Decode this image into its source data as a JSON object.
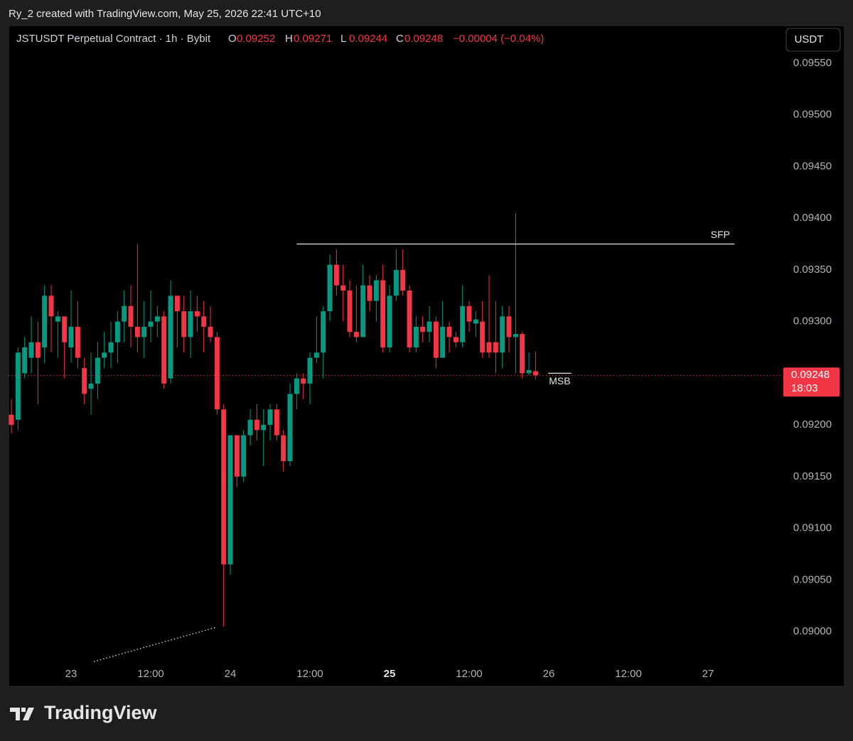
{
  "header": {
    "attribution": "Ry_2 created with TradingView.com, May 25, 2026 22:41 UTC+10"
  },
  "chart_data": {
    "type": "candlestick",
    "title": "JSTUSDT Perpetual Contract · 1h · Bybit",
    "ohlc_labels": [
      "O",
      "H",
      "L",
      "C"
    ],
    "change": "−0.00004 (−0.04%)",
    "currency": "USDT",
    "up_color": "#089981",
    "down_color": "#f23645",
    "x": [
      -9,
      -8,
      -7,
      -6,
      -5,
      -4,
      -3,
      -2,
      -1,
      0,
      1,
      2,
      3,
      4,
      5,
      6,
      7,
      8,
      9,
      10,
      11,
      12,
      13,
      14,
      15,
      16,
      17,
      18,
      19,
      20,
      21,
      22,
      23,
      24,
      25,
      26,
      27,
      28,
      29,
      30,
      31,
      32,
      33,
      34,
      35,
      36,
      37,
      38,
      39,
      40,
      41,
      42,
      43,
      44,
      45,
      46,
      47,
      48,
      49,
      50,
      51,
      52,
      53,
      54,
      55,
      56,
      57,
      58,
      59,
      60,
      61,
      62,
      63,
      64,
      65,
      66,
      67,
      68,
      69,
      70
    ],
    "open": [
      0.0921,
      0.09205,
      0.0925,
      0.09265,
      0.0928,
      0.09275,
      0.09325,
      0.093,
      0.09305,
      0.09275,
      0.09295,
      0.09255,
      0.09235,
      0.0924,
      0.09265,
      0.0927,
      0.0928,
      0.093,
      0.09315,
      0.09295,
      0.09285,
      0.09295,
      0.093,
      0.09305,
      0.09245,
      0.09325,
      0.0931,
      0.09285,
      0.0931,
      0.09305,
      0.09295,
      0.09285,
      0.09215,
      0.09065,
      0.0919,
      0.0915,
      0.0919,
      0.09205,
      0.09195,
      0.092,
      0.09215,
      0.0919,
      0.09165,
      0.0923,
      0.09245,
      0.0924,
      0.09265,
      0.0927,
      0.0931,
      0.09355,
      0.09335,
      0.0933,
      0.0929,
      0.09285,
      0.09335,
      0.0932,
      0.0934,
      0.09275,
      0.09325,
      0.0935,
      0.0933,
      0.09275,
      0.09295,
      0.0929,
      0.093,
      0.09265,
      0.09295,
      0.09285,
      0.0928,
      0.09315,
      0.09298,
      0.093,
      0.0928,
      0.0928,
      0.0927,
      0.09305,
      0.09285,
      0.09288,
      0.0925,
      0.09252
    ],
    "high": [
      0.09225,
      0.09275,
      0.09285,
      0.09305,
      0.093,
      0.09335,
      0.09335,
      0.0931,
      0.09305,
      0.0933,
      0.0932,
      0.09265,
      0.0927,
      0.0928,
      0.0929,
      0.093,
      0.0931,
      0.0933,
      0.09335,
      0.09375,
      0.0932,
      0.0933,
      0.09315,
      0.0931,
      0.0934,
      0.09325,
      0.09325,
      0.0933,
      0.09325,
      0.0932,
      0.09315,
      0.0929,
      0.0922,
      0.0919,
      0.0919,
      0.09195,
      0.09215,
      0.0922,
      0.09215,
      0.0922,
      0.0922,
      0.09195,
      0.0924,
      0.0925,
      0.0925,
      0.0927,
      0.09305,
      0.09315,
      0.09365,
      0.0937,
      0.09355,
      0.0934,
      0.09335,
      0.09355,
      0.09345,
      0.09345,
      0.09355,
      0.09335,
      0.0937,
      0.0937,
      0.09335,
      0.09305,
      0.09305,
      0.09315,
      0.09305,
      0.0932,
      0.093,
      0.0929,
      0.09335,
      0.0932,
      0.0931,
      0.0932,
      0.09345,
      0.0932,
      0.09315,
      0.09315,
      0.09405,
      0.0929,
      0.0927,
      0.09271
    ],
    "low": [
      0.09192,
      0.09195,
      0.09245,
      0.0925,
      0.0922,
      0.0926,
      0.0927,
      0.09265,
      0.09245,
      0.0926,
      0.09255,
      0.0922,
      0.0921,
      0.09225,
      0.09255,
      0.09255,
      0.0926,
      0.0928,
      0.09275,
      0.0927,
      0.09265,
      0.0928,
      0.09285,
      0.09235,
      0.0924,
      0.09275,
      0.0927,
      0.09265,
      0.0929,
      0.0927,
      0.0928,
      0.0921,
      0.09005,
      0.09055,
      0.0914,
      0.09145,
      0.0918,
      0.09185,
      0.0916,
      0.09185,
      0.09185,
      0.09155,
      0.0916,
      0.09215,
      0.09225,
      0.0922,
      0.0926,
      0.09245,
      0.093,
      0.09325,
      0.093,
      0.09285,
      0.0928,
      0.09285,
      0.0931,
      0.093,
      0.0927,
      0.0927,
      0.0932,
      0.09325,
      0.0927,
      0.0927,
      0.0928,
      0.0928,
      0.09255,
      0.09265,
      0.0927,
      0.09275,
      0.09275,
      0.0929,
      0.09285,
      0.09265,
      0.09265,
      0.0925,
      0.09255,
      0.0927,
      0.0925,
      0.09245,
      0.09248,
      0.09244
    ],
    "close": [
      0.092,
      0.0927,
      0.09275,
      0.0928,
      0.09265,
      0.09325,
      0.09305,
      0.09305,
      0.0928,
      0.09295,
      0.09265,
      0.0923,
      0.0924,
      0.09265,
      0.0927,
      0.0928,
      0.093,
      0.09315,
      0.09295,
      0.09285,
      0.09295,
      0.093,
      0.09305,
      0.0924,
      0.09325,
      0.0931,
      0.09285,
      0.0931,
      0.09305,
      0.09295,
      0.09285,
      0.09215,
      0.09065,
      0.0919,
      0.0915,
      0.0919,
      0.09205,
      0.09195,
      0.092,
      0.09215,
      0.0919,
      0.09165,
      0.0923,
      0.09245,
      0.0924,
      0.09265,
      0.0927,
      0.0931,
      0.09355,
      0.09335,
      0.0933,
      0.0929,
      0.09285,
      0.09335,
      0.0932,
      0.0934,
      0.09275,
      0.09325,
      0.0935,
      0.0933,
      0.09275,
      0.09295,
      0.0929,
      0.093,
      0.09265,
      0.09295,
      0.09285,
      0.0928,
      0.09315,
      0.093,
      0.09302,
      0.0927,
      0.0927,
      0.0927,
      0.09305,
      0.09285,
      0.09288,
      0.0925,
      0.09253,
      0.09248
    ],
    "xlim": [
      -9.43,
      107.14
    ],
    "ylim": [
      0.089471,
      0.095864
    ],
    "xticks": [
      {
        "value": 0,
        "label": "23"
      },
      {
        "value": 12,
        "label": "12:00"
      },
      {
        "value": 24,
        "label": "24"
      },
      {
        "value": 36,
        "label": "12:00"
      },
      {
        "value": 48,
        "label": "25",
        "bold": true
      },
      {
        "value": 60,
        "label": "12:00"
      },
      {
        "value": 72,
        "label": "26"
      },
      {
        "value": 84,
        "label": "12:00"
      },
      {
        "value": 96,
        "label": "27"
      }
    ],
    "yticks": [
      {
        "value": 0.09,
        "label": "0.09000"
      },
      {
        "value": 0.0905,
        "label": "0.09050"
      },
      {
        "value": 0.091,
        "label": "0.09100"
      },
      {
        "value": 0.0915,
        "label": "0.09150"
      },
      {
        "value": 0.092,
        "label": "0.09200"
      },
      {
        "value": 0.0925,
        "label": "0.09250"
      },
      {
        "value": 0.093,
        "label": "0.09300"
      },
      {
        "value": 0.0935,
        "label": "0.09350"
      },
      {
        "value": 0.094,
        "label": "0.09400"
      },
      {
        "value": 0.0945,
        "label": "0.09450"
      },
      {
        "value": 0.095,
        "label": "0.09500"
      },
      {
        "value": 0.0955,
        "label": "0.09550"
      }
    ],
    "hidden_ytick_values": [
      0.0925
    ],
    "last_price": 0.09248,
    "countdown": "18:03",
    "annotations": [
      {
        "type": "hline",
        "label": "SFP",
        "y": 0.09375,
        "x": [
          34,
          100
        ]
      },
      {
        "type": "hline",
        "label": "MSB",
        "y": 0.0925,
        "x": [
          71.9,
          75.4
        ]
      },
      {
        "type": "trendline",
        "x": [
          3.43,
          21.75
        ],
        "y": [
          0.08971,
          0.09004
        ]
      }
    ]
  },
  "footer": {
    "brand": "TradingView"
  }
}
